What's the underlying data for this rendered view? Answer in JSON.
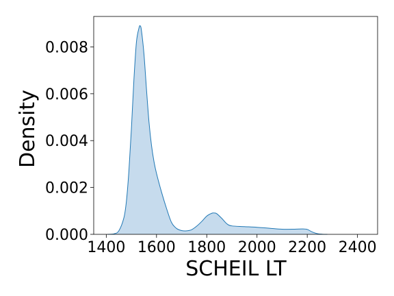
{
  "chart_data": {
    "type": "area",
    "title": "",
    "xlabel": "SCHEIL LT",
    "ylabel": "Density",
    "xlim": [
      1350,
      2480
    ],
    "ylim": [
      0,
      0.0093
    ],
    "xticks": [
      1400,
      1600,
      1800,
      2000,
      2200,
      2400
    ],
    "xtick_labels": [
      "1400",
      "1600",
      "1800",
      "2000",
      "2200",
      "2400"
    ],
    "yticks": [
      0,
      0.002,
      0.004,
      0.006,
      0.008
    ],
    "ytick_labels": [
      "0.000",
      "0.002",
      "0.004",
      "0.006",
      "0.008"
    ],
    "grid": false,
    "legend": "none",
    "series": [
      {
        "color": "#1f77b4",
        "fill": "#c6dbed",
        "x": [
          1405,
          1430,
          1450,
          1470,
          1480,
          1490,
          1500,
          1510,
          1520,
          1530,
          1535,
          1540,
          1550,
          1560,
          1570,
          1580,
          1590,
          1600,
          1620,
          1640,
          1660,
          1680,
          1700,
          1720,
          1740,
          1760,
          1780,
          1800,
          1820,
          1830,
          1840,
          1860,
          1880,
          1900,
          1950,
          2000,
          2050,
          2100,
          2150,
          2180,
          2200,
          2220,
          2240,
          2260,
          2280
        ],
        "y": [
          0.0,
          2e-05,
          0.00015,
          0.0007,
          0.0014,
          0.0027,
          0.0045,
          0.0066,
          0.0082,
          0.0088,
          0.0089,
          0.0087,
          0.0077,
          0.0062,
          0.0048,
          0.0038,
          0.0031,
          0.0026,
          0.0018,
          0.0011,
          0.0005,
          0.00025,
          0.00016,
          0.00015,
          0.0002,
          0.00035,
          0.00055,
          0.00078,
          0.0009,
          0.00091,
          0.00088,
          0.00068,
          0.00045,
          0.00036,
          0.00033,
          0.0003,
          0.00026,
          0.00022,
          0.00022,
          0.00023,
          0.00021,
          0.0001,
          3e-05,
          5e-06,
          0.0
        ]
      }
    ]
  }
}
